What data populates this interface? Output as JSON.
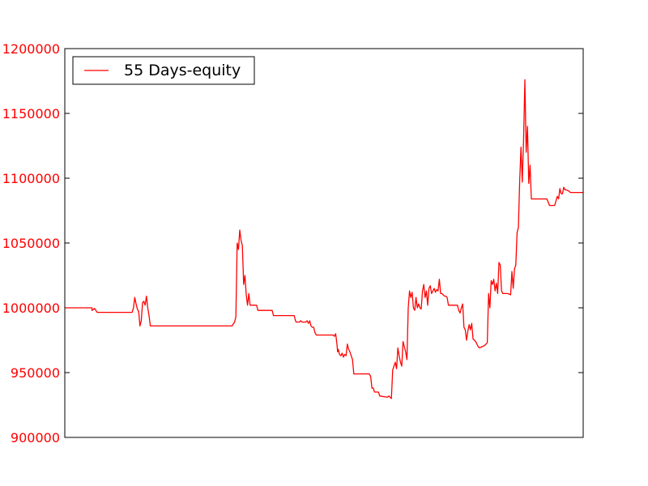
{
  "chart_data": {
    "type": "line",
    "title": "",
    "xlabel": "",
    "ylabel": "",
    "ylim": [
      900000,
      1200000
    ],
    "yticks": [
      900000,
      950000,
      1000000,
      1050000,
      1100000,
      1150000,
      1200000
    ],
    "ytick_labels": [
      "900000",
      "950000",
      "1000000",
      "1050000",
      "1100000",
      "1150000",
      "1200000"
    ],
    "xlim": [
      0,
      400
    ],
    "grid": false,
    "legend_position": "upper-left",
    "tick_color": "#ff0000",
    "series": [
      {
        "name": "55 Days-equity",
        "color": "#ff0000",
        "points": [
          [
            0,
            1000000
          ],
          [
            3,
            1000000
          ],
          [
            18,
            1000000
          ],
          [
            21,
            1000000
          ],
          [
            21,
            998000
          ],
          [
            23,
            999500
          ],
          [
            25,
            996500
          ],
          [
            48,
            996500
          ],
          [
            52,
            996500
          ],
          [
            53,
            1000000
          ],
          [
            54,
            1008000
          ],
          [
            55,
            1003000
          ],
          [
            56,
            999000
          ],
          [
            57,
            997000
          ],
          [
            58,
            986000
          ],
          [
            59,
            990000
          ],
          [
            60,
            1004000
          ],
          [
            61,
            1005000
          ],
          [
            62,
            1002000
          ],
          [
            63,
            1009000
          ],
          [
            64,
            1000000
          ],
          [
            65,
            994000
          ],
          [
            66,
            986000
          ],
          [
            78,
            986000
          ],
          [
            105,
            986000
          ],
          [
            128,
            986000
          ],
          [
            129,
            986000
          ],
          [
            131,
            989000
          ],
          [
            132,
            993000
          ],
          [
            133,
            1050000
          ],
          [
            134,
            1045000
          ],
          [
            135,
            1060000
          ],
          [
            136,
            1052000
          ],
          [
            137,
            1048000
          ],
          [
            138,
            1018000
          ],
          [
            139,
            1025000
          ],
          [
            140,
            1010000
          ],
          [
            141,
            1002000
          ],
          [
            142,
            1011000
          ],
          [
            143,
            1002000
          ],
          [
            147,
            1002000
          ],
          [
            148,
            1002000
          ],
          [
            149,
            998000
          ],
          [
            160,
            998000
          ],
          [
            161,
            994000
          ],
          [
            177,
            994000
          ],
          [
            178,
            990000
          ],
          [
            178.5,
            989000
          ],
          [
            181,
            989000
          ],
          [
            182,
            990000
          ],
          [
            183,
            989000
          ],
          [
            186,
            989000
          ],
          [
            187,
            990000
          ],
          [
            188,
            988000
          ],
          [
            189,
            990000
          ],
          [
            190,
            986000
          ],
          [
            191,
            985000
          ],
          [
            192,
            985000
          ],
          [
            193,
            981000
          ],
          [
            194,
            979000
          ],
          [
            207,
            979000
          ],
          [
            208,
            978000
          ],
          [
            209,
            980000
          ],
          [
            210,
            972000
          ],
          [
            210.5,
            966000
          ],
          [
            211,
            968000
          ],
          [
            212,
            964000
          ],
          [
            213,
            963000
          ],
          [
            214,
            965000
          ],
          [
            215,
            962000
          ],
          [
            216,
            964000
          ],
          [
            217,
            963000
          ],
          [
            218,
            972000
          ],
          [
            219,
            968000
          ],
          [
            220,
            966000
          ],
          [
            221,
            963000
          ],
          [
            222,
            960000
          ],
          [
            223,
            949000
          ],
          [
            235,
            949000
          ],
          [
            236,
            947000
          ],
          [
            237,
            938000
          ],
          [
            238,
            938000
          ],
          [
            239,
            935000
          ],
          [
            242,
            935000
          ],
          [
            243,
            932000
          ],
          [
            249,
            931000
          ],
          [
            250,
            932000
          ],
          [
            252,
            930000
          ],
          [
            253,
            952000
          ],
          [
            254,
            955000
          ],
          [
            255,
            958000
          ],
          [
            256,
            953000
          ],
          [
            257,
            969000
          ],
          [
            258,
            963000
          ],
          [
            259,
            958000
          ],
          [
            260,
            955000
          ],
          [
            261,
            974000
          ],
          [
            262,
            970000
          ],
          [
            263,
            966000
          ],
          [
            264,
            960000
          ],
          [
            265,
            1000000
          ],
          [
            266,
            1013000
          ],
          [
            267,
            1008000
          ],
          [
            268,
            1012000
          ],
          [
            269,
            1000000
          ],
          [
            270,
            998000
          ],
          [
            271,
            1008000
          ],
          [
            272,
            1000000
          ],
          [
            273,
            1003000
          ],
          [
            274,
            1000000
          ],
          [
            275,
            999000
          ],
          [
            276,
            1013000
          ],
          [
            277,
            1018000
          ],
          [
            278,
            1008000
          ],
          [
            279,
            1013000
          ],
          [
            280,
            1002000
          ],
          [
            281,
            1015000
          ],
          [
            282,
            1017000
          ],
          [
            283,
            1011000
          ],
          [
            285,
            1015000
          ],
          [
            286,
            1012000
          ],
          [
            287,
            1014000
          ],
          [
            288,
            1013000
          ],
          [
            289,
            1022000
          ],
          [
            290,
            1011000
          ],
          [
            291,
            1011000
          ],
          [
            292,
            1010000
          ],
          [
            293,
            1009000
          ],
          [
            294,
            1009000
          ],
          [
            295,
            1008000
          ],
          [
            296,
            1002000
          ],
          [
            303,
            1002000
          ],
          [
            304,
            998000
          ],
          [
            305,
            996000
          ],
          [
            306,
            1000000
          ],
          [
            307,
            1003000
          ],
          [
            308,
            985000
          ],
          [
            309,
            983000
          ],
          [
            310,
            975000
          ],
          [
            311,
            982000
          ],
          [
            312,
            987000
          ],
          [
            313,
            983000
          ],
          [
            314,
            988000
          ],
          [
            315,
            976000
          ],
          [
            316,
            975000
          ],
          [
            317,
            974000
          ],
          [
            318,
            972000
          ],
          [
            319,
            970000
          ],
          [
            320,
            969000
          ],
          [
            322,
            970000
          ],
          [
            324,
            971000
          ],
          [
            326,
            973000
          ],
          [
            327,
            1011000
          ],
          [
            328,
            1000000
          ],
          [
            329,
            1021000
          ],
          [
            330,
            1018000
          ],
          [
            331,
            1022000
          ],
          [
            332,
            1013000
          ],
          [
            333,
            1019000
          ],
          [
            334,
            1011000
          ],
          [
            335,
            1035000
          ],
          [
            336,
            1033000
          ],
          [
            337,
            1013000
          ],
          [
            338,
            1011000
          ],
          [
            342,
            1011000
          ],
          [
            344,
            1010000
          ],
          [
            345,
            1028000
          ],
          [
            346,
            1015000
          ],
          [
            347,
            1030000
          ],
          [
            348,
            1033000
          ],
          [
            349,
            1058000
          ],
          [
            350,
            1062000
          ],
          [
            351,
            1098000
          ],
          [
            352,
            1124000
          ],
          [
            353,
            1097000
          ],
          [
            354,
            1130000
          ],
          [
            355,
            1176000
          ],
          [
            356,
            1120000
          ],
          [
            357,
            1140000
          ],
          [
            358,
            1096000
          ],
          [
            359,
            1110000
          ],
          [
            360,
            1084000
          ],
          [
            372,
            1084000
          ],
          [
            374,
            1079000
          ],
          [
            378,
            1079000
          ],
          [
            380,
            1086000
          ],
          [
            381,
            1084000
          ],
          [
            382,
            1092000
          ],
          [
            383,
            1088000
          ],
          [
            384,
            1088000
          ],
          [
            385,
            1093000
          ],
          [
            386,
            1091000
          ],
          [
            387,
            1091000
          ],
          [
            389,
            1090000
          ],
          [
            390,
            1089000
          ],
          [
            400,
            1089000
          ]
        ]
      }
    ]
  }
}
